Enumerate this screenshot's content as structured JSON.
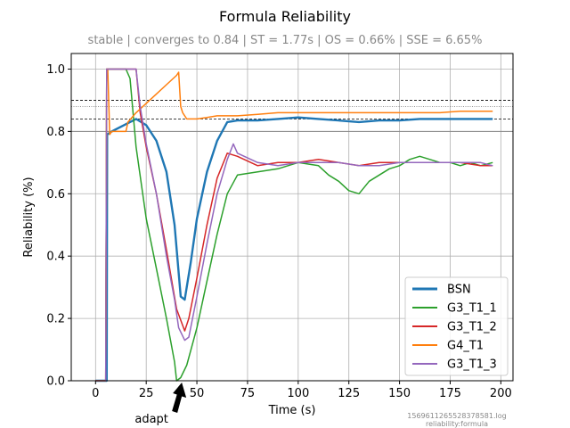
{
  "chart_data": {
    "type": "line",
    "title": "Formula Reliability",
    "subtitle": "stable | converges to 0.84 | ST = 1.77s | OS = 0.66% | SSE = 6.65%",
    "xlabel": "Time (s)",
    "ylabel": "Reliability (%)",
    "xlim": [
      -12,
      206
    ],
    "ylim": [
      0,
      1.05
    ],
    "xticks": [
      0,
      25,
      50,
      75,
      100,
      125,
      150,
      175,
      200
    ],
    "yticks": [
      0.0,
      0.2,
      0.4,
      0.6,
      0.8,
      1.0
    ],
    "xtick_labels": [
      "0",
      "25",
      "50",
      "75",
      "100",
      "125",
      "150",
      "175",
      "200"
    ],
    "ytick_labels": [
      "0.0",
      "0.2",
      "0.4",
      "0.6",
      "0.8",
      "1.0"
    ],
    "grid": true,
    "legend_position": "lower-right",
    "reference_lines": [
      {
        "y": 0.9,
        "style": "dashed"
      },
      {
        "y": 0.88,
        "style": "dotted"
      },
      {
        "y": 0.84,
        "style": "dashed"
      },
      {
        "y": 0.8,
        "style": "solid"
      }
    ],
    "annotation": {
      "text": "adapt",
      "x": 43
    },
    "footnote": [
      "1569611265528378581.log",
      "reliability:formula"
    ],
    "series": [
      {
        "name": "BSN",
        "color": "#1f77b4",
        "width": 2.4,
        "x": [
          0,
          4,
          5.5,
          5.7,
          8,
          20,
          25,
          30,
          35,
          39,
          42,
          44,
          47,
          50,
          55,
          60,
          65,
          70,
          80,
          90,
          100,
          110,
          120,
          130,
          140,
          150,
          160,
          170,
          180,
          190,
          196
        ],
        "y": [
          0,
          0,
          0,
          0.79,
          0.8,
          0.84,
          0.82,
          0.77,
          0.67,
          0.5,
          0.27,
          0.26,
          0.38,
          0.52,
          0.67,
          0.77,
          0.83,
          0.835,
          0.835,
          0.84,
          0.845,
          0.84,
          0.835,
          0.83,
          0.835,
          0.835,
          0.84,
          0.84,
          0.84,
          0.84,
          0.84
        ]
      },
      {
        "name": "G3_T1_1",
        "color": "#2ca02c",
        "width": 1.5,
        "x": [
          0,
          5,
          5.5,
          6,
          10,
          15,
          17,
          20,
          25,
          30,
          35,
          39,
          40,
          42,
          45,
          50,
          55,
          60,
          65,
          70,
          80,
          90,
          100,
          110,
          115,
          120,
          125,
          130,
          135,
          140,
          145,
          150,
          155,
          160,
          165,
          170,
          175,
          180,
          185,
          190,
          196
        ],
        "y": [
          0,
          0,
          1.0,
          1.0,
          1.0,
          1.0,
          0.97,
          0.75,
          0.52,
          0.36,
          0.2,
          0.06,
          0.0,
          0.01,
          0.05,
          0.17,
          0.32,
          0.47,
          0.6,
          0.66,
          0.67,
          0.68,
          0.7,
          0.69,
          0.66,
          0.64,
          0.61,
          0.6,
          0.64,
          0.66,
          0.68,
          0.69,
          0.71,
          0.72,
          0.71,
          0.7,
          0.7,
          0.69,
          0.7,
          0.69,
          0.7
        ]
      },
      {
        "name": "G3_T1_2",
        "color": "#d62728",
        "width": 1.5,
        "x": [
          0,
          5,
          5.5,
          6,
          10,
          15,
          20,
          22,
          25,
          30,
          35,
          40,
          44,
          46,
          50,
          55,
          60,
          65,
          70,
          80,
          90,
          100,
          110,
          120,
          130,
          140,
          150,
          160,
          170,
          180,
          190,
          196
        ],
        "y": [
          0,
          0,
          1.0,
          1.0,
          1.0,
          1.0,
          1.0,
          0.86,
          0.75,
          0.6,
          0.42,
          0.23,
          0.16,
          0.2,
          0.33,
          0.5,
          0.65,
          0.73,
          0.72,
          0.69,
          0.7,
          0.7,
          0.71,
          0.7,
          0.69,
          0.7,
          0.7,
          0.7,
          0.7,
          0.7,
          0.69,
          0.69
        ]
      },
      {
        "name": "G4_T1",
        "color": "#ff7f0e",
        "width": 1.5,
        "x": [
          0,
          5,
          5.5,
          6,
          7,
          8,
          10,
          15,
          16,
          20,
          25,
          30,
          35,
          40,
          41,
          42,
          43,
          45,
          50,
          55,
          60,
          70,
          80,
          90,
          100,
          110,
          120,
          130,
          140,
          150,
          160,
          170,
          180,
          190,
          196
        ],
        "y": [
          0,
          0,
          1.0,
          1.0,
          0.79,
          0.8,
          0.8,
          0.8,
          0.83,
          0.86,
          0.89,
          0.92,
          0.95,
          0.98,
          0.99,
          0.88,
          0.86,
          0.84,
          0.84,
          0.845,
          0.85,
          0.85,
          0.855,
          0.86,
          0.86,
          0.86,
          0.86,
          0.86,
          0.86,
          0.86,
          0.86,
          0.86,
          0.865,
          0.865,
          0.865
        ]
      },
      {
        "name": "G3_T1_3",
        "color": "#9467bd",
        "width": 1.5,
        "x": [
          0,
          5,
          5.5,
          6,
          10,
          15,
          20,
          22,
          25,
          30,
          35,
          39,
          41,
          44,
          46,
          50,
          55,
          60,
          65,
          68,
          70,
          80,
          90,
          100,
          110,
          120,
          130,
          140,
          150,
          160,
          170,
          180,
          190,
          196
        ],
        "y": [
          0,
          0,
          1.0,
          1.0,
          1.0,
          1.0,
          1.0,
          0.88,
          0.76,
          0.6,
          0.4,
          0.26,
          0.17,
          0.13,
          0.14,
          0.27,
          0.44,
          0.6,
          0.71,
          0.76,
          0.73,
          0.7,
          0.69,
          0.7,
          0.7,
          0.7,
          0.69,
          0.69,
          0.7,
          0.7,
          0.7,
          0.7,
          0.7,
          0.69
        ]
      }
    ]
  }
}
